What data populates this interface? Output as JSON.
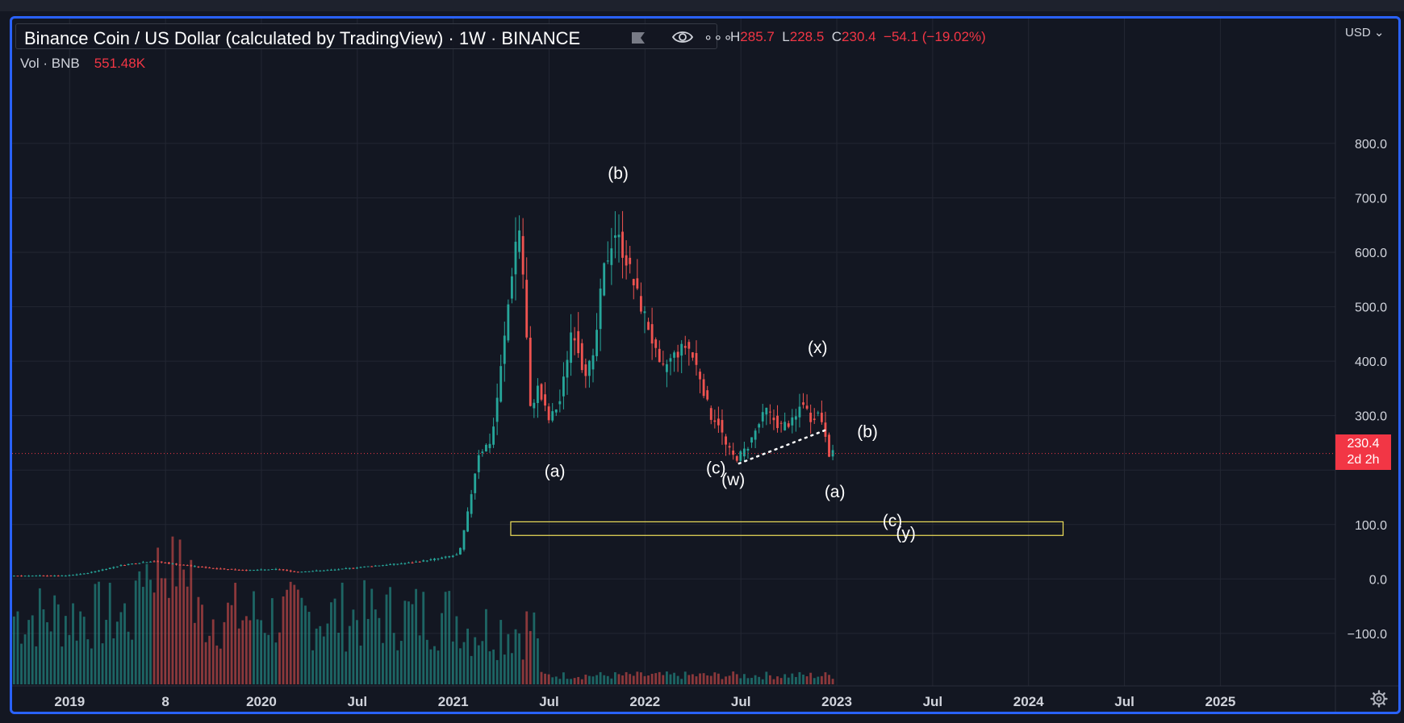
{
  "header": {
    "symbol_title": "Binance Coin / US Dollar (calculated by TradingView) · 1W · BINANCE",
    "ohlc": {
      "h_label": "H",
      "h_value": "285.7",
      "l_label": "L",
      "l_value": "228.5",
      "c_label": "C",
      "c_value": "230.4",
      "change": "−54.1 (−19.02%)"
    },
    "volume_label": "Vol · BNB",
    "volume_value": "551.48K",
    "currency": "USD"
  },
  "last_price": {
    "value": "230.4",
    "countdown": "2d 2h"
  },
  "colors": {
    "background": "#131722",
    "up": "#26a69a",
    "down": "#ef5350",
    "frame": "#2962ff",
    "box": "#f0e05a",
    "text": "#d1d4dc"
  },
  "icons": [
    "flag-icon",
    "eye-icon",
    "more-icon",
    "gear-icon"
  ],
  "chart_data": {
    "type": "candlestick",
    "title": "Binance Coin / US Dollar (calculated by TradingView) · 1W · BINANCE",
    "y_axis": {
      "ticks": [
        "800.0",
        "700.0",
        "600.0",
        "500.0",
        "400.0",
        "300.0",
        "100.0",
        "0.0",
        "−100.0"
      ],
      "range": [
        -155,
        905
      ]
    },
    "x_axis": {
      "range": [
        2018.7,
        2025.6
      ],
      "ticks": [
        {
          "label": "2019",
          "t": 2019.0
        },
        {
          "label": "8",
          "t": 2019.5
        },
        {
          "label": "2020",
          "t": 2020.0
        },
        {
          "label": "Jul",
          "t": 2020.5
        },
        {
          "label": "2021",
          "t": 2021.0
        },
        {
          "label": "Jul",
          "t": 2021.5
        },
        {
          "label": "2022",
          "t": 2022.0
        },
        {
          "label": "Jul",
          "t": 2022.5
        },
        {
          "label": "2023",
          "t": 2023.0
        },
        {
          "label": "Jul",
          "t": 2023.5
        },
        {
          "label": "2024",
          "t": 2024.0
        },
        {
          "label": "Jul",
          "t": 2024.5
        },
        {
          "label": "2025",
          "t": 2025.0
        }
      ]
    },
    "price_path": [
      [
        2018.7,
        6
      ],
      [
        2019.0,
        6
      ],
      [
        2019.1,
        10
      ],
      [
        2019.3,
        26
      ],
      [
        2019.45,
        33
      ],
      [
        2019.55,
        28
      ],
      [
        2019.75,
        20
      ],
      [
        2019.95,
        16
      ],
      [
        2020.1,
        18
      ],
      [
        2020.2,
        13
      ],
      [
        2020.4,
        17
      ],
      [
        2020.6,
        24
      ],
      [
        2020.8,
        30
      ],
      [
        2020.95,
        38
      ],
      [
        2021.05,
        45
      ],
      [
        2021.1,
        130
      ],
      [
        2021.15,
        230
      ],
      [
        2021.22,
        255
      ],
      [
        2021.28,
        420
      ],
      [
        2021.33,
        580
      ],
      [
        2021.36,
        660
      ],
      [
        2021.39,
        530
      ],
      [
        2021.42,
        310
      ],
      [
        2021.46,
        350
      ],
      [
        2021.52,
        290
      ],
      [
        2021.58,
        330
      ],
      [
        2021.64,
        470
      ],
      [
        2021.7,
        380
      ],
      [
        2021.75,
        400
      ],
      [
        2021.8,
        560
      ],
      [
        2021.86,
        640
      ],
      [
        2021.92,
        590
      ],
      [
        2021.97,
        530
      ],
      [
        2022.04,
        460
      ],
      [
        2022.1,
        380
      ],
      [
        2022.17,
        410
      ],
      [
        2022.24,
        430
      ],
      [
        2022.3,
        380
      ],
      [
        2022.36,
        300
      ],
      [
        2022.4,
        290
      ],
      [
        2022.44,
        245
      ],
      [
        2022.49,
        220
      ],
      [
        2022.55,
        240
      ],
      [
        2022.6,
        275
      ],
      [
        2022.65,
        310
      ],
      [
        2022.72,
        280
      ],
      [
        2022.8,
        290
      ],
      [
        2022.84,
        330
      ],
      [
        2022.88,
        295
      ],
      [
        2022.92,
        305
      ],
      [
        2022.95,
        285
      ],
      [
        2022.98,
        230
      ]
    ],
    "volume": {
      "label": "Vol · BNB",
      "last": "551.48K"
    },
    "annotations": [
      {
        "text": "(b)",
        "t": 2021.86,
        "price": 735
      },
      {
        "text": "(a)",
        "t": 2021.53,
        "price": 188
      },
      {
        "text": "(c)",
        "t": 2022.37,
        "price": 194
      },
      {
        "text": "(w)",
        "t": 2022.46,
        "price": 172
      },
      {
        "text": "(x)",
        "t": 2022.9,
        "price": 415
      },
      {
        "text": "(b)",
        "t": 2023.16,
        "price": 260
      },
      {
        "text": "(a)",
        "t": 2022.99,
        "price": 150
      },
      {
        "text": "(c)",
        "t": 2023.29,
        "price": 97
      },
      {
        "text": "(y)",
        "t": 2023.36,
        "price": 74
      }
    ],
    "trendline": {
      "from": [
        2022.49,
        212
      ],
      "to": [
        2022.96,
        276
      ],
      "style": "dotted"
    },
    "target_zone": {
      "t_from": 2021.3,
      "t_to": 2024.18,
      "price_from": 80,
      "price_to": 105
    },
    "last_price_line": 230.4
  }
}
